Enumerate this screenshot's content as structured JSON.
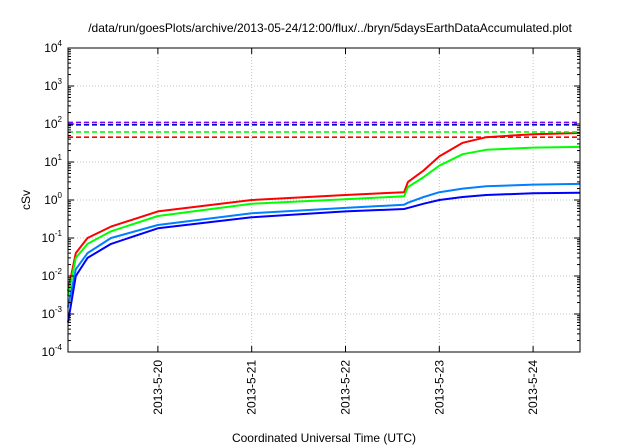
{
  "chart_data": {
    "type": "line",
    "title": "/data/run/goesPlots/archive/2013-05-24/12:00/flux/../bryn/5daysEarthDataAccumulated.plot",
    "xlabel": "Coordinated Universal Time (UTC)",
    "ylabel": "cSv",
    "x_type": "date",
    "xlim": [
      "2013-05-19 01:00",
      "2013-05-24 12:00"
    ],
    "ylim": [
      0.0001,
      10000
    ],
    "y_scale": "log",
    "grid": true,
    "x_ticks": [
      "2013-5-20",
      "2013-5-21",
      "2013-5-22",
      "2013-5-23",
      "2013-5-24"
    ],
    "y_ticks": [
      {
        "base": "10",
        "exp": "-4"
      },
      {
        "base": "10",
        "exp": "-3"
      },
      {
        "base": "10",
        "exp": "-2"
      },
      {
        "base": "10",
        "exp": "-1"
      },
      {
        "base": "10",
        "exp": "0"
      },
      {
        "base": "10",
        "exp": "1"
      },
      {
        "base": "10",
        "exp": "2"
      },
      {
        "base": "10",
        "exp": "3"
      },
      {
        "base": "10",
        "exp": "4"
      }
    ],
    "series": [
      {
        "color": "#ff0000",
        "style": "solid",
        "x": [
          "2013-05-19 01:00",
          "2013-05-19 03:00",
          "2013-05-19 06:00",
          "2013-05-19 12:00",
          "2013-05-20 00:00",
          "2013-05-21 00:00",
          "2013-05-22 00:00",
          "2013-05-22 15:00",
          "2013-05-22 16:00",
          "2013-05-22 20:00",
          "2013-05-23 00:00",
          "2013-05-23 06:00",
          "2013-05-23 12:00",
          "2013-05-24 00:00",
          "2013-05-24 12:00"
        ],
        "y": [
          0.004,
          0.04,
          0.1,
          0.2,
          0.5,
          1.0,
          1.35,
          1.6,
          3.0,
          6.0,
          14,
          32,
          45,
          54,
          58
        ]
      },
      {
        "color": "#00ff00",
        "style": "solid",
        "x": [
          "2013-05-19 01:00",
          "2013-05-19 03:00",
          "2013-05-19 06:00",
          "2013-05-19 12:00",
          "2013-05-20 00:00",
          "2013-05-21 00:00",
          "2013-05-22 00:00",
          "2013-05-22 15:00",
          "2013-05-22 16:00",
          "2013-05-22 20:00",
          "2013-05-23 00:00",
          "2013-05-23 06:00",
          "2013-05-23 12:00",
          "2013-05-24 00:00",
          "2013-05-24 12:00"
        ],
        "y": [
          0.003,
          0.03,
          0.07,
          0.15,
          0.38,
          0.8,
          1.05,
          1.25,
          2.2,
          4.0,
          8.0,
          16,
          21,
          24,
          25
        ]
      },
      {
        "color": "#0080ff",
        "style": "solid",
        "x": [
          "2013-05-19 01:00",
          "2013-05-19 03:00",
          "2013-05-19 06:00",
          "2013-05-19 12:00",
          "2013-05-20 00:00",
          "2013-05-21 00:00",
          "2013-05-22 00:00",
          "2013-05-22 15:00",
          "2013-05-22 16:00",
          "2013-05-22 20:00",
          "2013-05-23 00:00",
          "2013-05-23 06:00",
          "2013-05-23 12:00",
          "2013-05-24 00:00",
          "2013-05-24 12:00"
        ],
        "y": [
          0.0015,
          0.015,
          0.04,
          0.1,
          0.22,
          0.45,
          0.62,
          0.75,
          0.85,
          1.2,
          1.6,
          2.0,
          2.3,
          2.55,
          2.65
        ]
      },
      {
        "color": "#0000ff",
        "style": "solid",
        "x": [
          "2013-05-19 01:00",
          "2013-05-19 03:00",
          "2013-05-19 06:00",
          "2013-05-19 12:00",
          "2013-05-20 00:00",
          "2013-05-21 00:00",
          "2013-05-22 00:00",
          "2013-05-22 15:00",
          "2013-05-22 16:00",
          "2013-05-22 20:00",
          "2013-05-23 00:00",
          "2013-05-23 06:00",
          "2013-05-23 12:00",
          "2013-05-24 00:00",
          "2013-05-24 12:00"
        ],
        "y": [
          0.0006,
          0.01,
          0.03,
          0.07,
          0.18,
          0.35,
          0.5,
          0.58,
          0.62,
          0.8,
          1.0,
          1.2,
          1.35,
          1.5,
          1.55
        ]
      },
      {
        "color": "#8000ff",
        "style": "dashed",
        "x": [
          "2013-05-19 01:00",
          "2013-05-24 12:00"
        ],
        "y": [
          110,
          110
        ]
      },
      {
        "color": "#0000c0",
        "style": "dashed",
        "x": [
          "2013-05-19 01:00",
          "2013-05-24 12:00"
        ],
        "y": [
          95,
          95
        ]
      },
      {
        "color": "#00ff00",
        "style": "dashed",
        "x": [
          "2013-05-19 01:00",
          "2013-05-24 12:00"
        ],
        "y": [
          62,
          62
        ]
      },
      {
        "color": "#ff0000",
        "style": "dashed",
        "x": [
          "2013-05-19 01:00",
          "2013-05-24 12:00"
        ],
        "y": [
          45,
          45
        ]
      }
    ]
  }
}
